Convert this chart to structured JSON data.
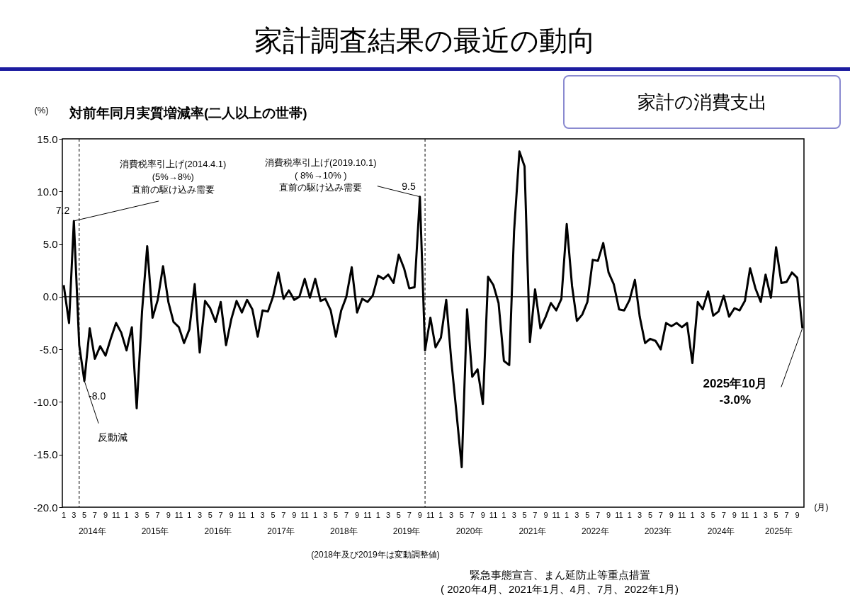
{
  "chart_data": {
    "type": "line",
    "title": "家計調査結果の最近の動向",
    "subtitle": "家計の消費支出",
    "ylabel": "(%)",
    "xlabel": "(月)",
    "color": "#000000",
    "x": [
      "2014-01",
      "2014-02",
      "2014-03",
      "2014-04",
      "2014-05",
      "2014-06",
      "2014-07",
      "2014-08",
      "2014-09",
      "2014-10",
      "2014-11",
      "2014-12",
      "2015-01",
      "2015-02",
      "2015-03",
      "2015-04",
      "2015-05",
      "2015-06",
      "2015-07",
      "2015-08",
      "2015-09",
      "2015-10",
      "2015-11",
      "2015-12",
      "2016-01",
      "2016-02",
      "2016-03",
      "2016-04",
      "2016-05",
      "2016-06",
      "2016-07",
      "2016-08",
      "2016-09",
      "2016-10",
      "2016-11",
      "2016-12",
      "2017-01",
      "2017-02",
      "2017-03",
      "2017-04",
      "2017-05",
      "2017-06",
      "2017-07",
      "2017-08",
      "2017-09",
      "2017-10",
      "2017-11",
      "2017-12",
      "2018-01",
      "2018-02",
      "2018-03",
      "2018-04",
      "2018-05",
      "2018-06",
      "2018-07",
      "2018-08",
      "2018-09",
      "2018-10",
      "2018-11",
      "2018-12",
      "2019-01",
      "2019-02",
      "2019-03",
      "2019-04",
      "2019-05",
      "2019-06",
      "2019-07",
      "2019-08",
      "2019-09",
      "2019-10",
      "2019-11",
      "2019-12",
      "2020-01",
      "2020-02",
      "2020-03",
      "2020-04",
      "2020-05",
      "2020-06",
      "2020-07",
      "2020-08",
      "2020-09",
      "2020-10",
      "2020-11",
      "2020-12",
      "2021-01",
      "2021-02",
      "2021-03",
      "2021-04",
      "2021-05",
      "2021-06",
      "2021-07",
      "2021-08",
      "2021-09",
      "2021-10",
      "2021-11",
      "2021-12",
      "2022-01",
      "2022-02",
      "2022-03",
      "2022-04",
      "2022-05",
      "2022-06",
      "2022-07",
      "2022-08",
      "2022-09",
      "2022-10",
      "2022-11",
      "2022-12",
      "2023-01",
      "2023-02",
      "2023-03",
      "2023-04",
      "2023-05",
      "2023-06",
      "2023-07",
      "2023-08",
      "2023-09",
      "2023-10",
      "2023-11",
      "2023-12",
      "2024-01",
      "2024-02",
      "2024-03",
      "2024-04",
      "2024-05",
      "2024-06",
      "2024-07",
      "2024-08",
      "2024-09",
      "2024-10",
      "2024-11",
      "2024-12",
      "2025-01",
      "2025-02",
      "2025-03",
      "2025-04",
      "2025-05",
      "2025-06",
      "2025-07",
      "2025-08",
      "2025-09",
      "2025-10"
    ],
    "values": [
      1.1,
      -2.5,
      7.2,
      -4.6,
      -8.0,
      -3.0,
      -5.9,
      -4.7,
      -5.6,
      -4.0,
      -2.5,
      -3.4,
      -5.1,
      -2.9,
      -10.6,
      -1.4,
      4.8,
      -2.0,
      -0.3,
      2.9,
      -0.5,
      -2.4,
      -2.9,
      -4.4,
      -3.1,
      1.2,
      -5.3,
      -0.4,
      -1.1,
      -2.4,
      -0.5,
      -4.6,
      -2.1,
      -0.4,
      -1.5,
      -0.3,
      -1.2,
      -3.8,
      -1.3,
      -1.4,
      0.0,
      2.3,
      -0.2,
      0.6,
      -0.3,
      0.0,
      1.7,
      -0.1,
      1.7,
      -0.4,
      -0.2,
      -1.3,
      -3.8,
      -1.3,
      0.0,
      2.8,
      -1.5,
      -0.2,
      -0.5,
      0.1,
      2.0,
      1.7,
      2.1,
      1.3,
      4.0,
      2.7,
      0.8,
      0.9,
      9.5,
      -5.1,
      -2.0,
      -4.8,
      -3.9,
      -0.3,
      -6.0,
      -11.1,
      -16.2,
      -1.2,
      -7.6,
      -6.9,
      -10.2,
      1.9,
      1.1,
      -0.6,
      -6.1,
      -6.5,
      6.2,
      13.8,
      12.4,
      -4.3,
      0.7,
      -3.0,
      -1.9,
      -0.6,
      -1.3,
      -0.2,
      6.9,
      1.0,
      -2.3,
      -1.7,
      -0.5,
      3.5,
      3.4,
      5.1,
      2.3,
      1.2,
      -1.2,
      -1.3,
      -0.3,
      1.6,
      -1.9,
      -4.4,
      -4.0,
      -4.2,
      -5.0,
      -2.5,
      -2.8,
      -2.5,
      -2.9,
      -2.5,
      -6.3,
      -0.5,
      -1.2,
      0.5,
      -1.8,
      -1.4,
      0.1,
      -1.9,
      -1.1,
      -1.3,
      -0.4,
      2.7,
      0.8,
      -0.5,
      2.1,
      -0.1,
      4.7,
      1.3,
      1.4,
      2.3,
      1.8,
      -3.0
    ],
    "value_labels": [
      null,
      null,
      "7.2",
      null,
      "-8.0",
      null,
      null,
      null,
      null,
      null,
      null,
      null,
      null,
      null,
      null,
      null,
      null,
      null,
      null,
      null,
      null,
      null,
      null,
      null,
      null,
      null,
      null,
      null,
      null,
      null,
      null,
      null,
      null,
      null,
      null,
      null,
      null,
      null,
      null,
      null,
      null,
      null,
      null,
      null,
      null,
      null,
      null,
      null,
      null,
      null,
      null,
      null,
      null,
      null,
      null,
      null,
      null,
      null,
      null,
      null,
      null,
      null,
      null,
      null,
      null,
      null,
      null,
      null,
      "9.5",
      null,
      null,
      null,
      null,
      null,
      null,
      null,
      null,
      null,
      null,
      null,
      null,
      null,
      null,
      null,
      null,
      null,
      null,
      null,
      null,
      null,
      null,
      null,
      null,
      null,
      null,
      null,
      null,
      null,
      null,
      null,
      null,
      null,
      null,
      null,
      null,
      null,
      null,
      null,
      null,
      null,
      null,
      null,
      null,
      null,
      null,
      null,
      null,
      null,
      null,
      null,
      null,
      null,
      null,
      null,
      null,
      null,
      null,
      null,
      null,
      null,
      null,
      null,
      null,
      null,
      null,
      null,
      null,
      null,
      null,
      null,
      null,
      null
    ],
    "xlim": [
      "2013-12-24",
      "2025-10-10"
    ],
    "xticks": [
      {
        "value": "2014-01",
        "label": "1"
      },
      {
        "value": "2014-03",
        "label": "3"
      },
      {
        "value": "2014-05",
        "label": "5"
      },
      {
        "value": "2014-07",
        "label": "7"
      },
      {
        "value": "2014-09",
        "label": "9"
      },
      {
        "value": "2014-11",
        "label": "11"
      },
      {
        "value": "2015-01",
        "label": "1"
      },
      {
        "value": "2015-03",
        "label": "3"
      },
      {
        "value": "2015-05",
        "label": "5"
      },
      {
        "value": "2015-07",
        "label": "7"
      },
      {
        "value": "2015-09",
        "label": "9"
      },
      {
        "value": "2015-11",
        "label": "11"
      },
      {
        "value": "2016-01",
        "label": "1"
      },
      {
        "value": "2016-03",
        "label": "3"
      },
      {
        "value": "2016-05",
        "label": "5"
      },
      {
        "value": "2016-07",
        "label": "7"
      },
      {
        "value": "2016-09",
        "label": "9"
      },
      {
        "value": "2016-11",
        "label": "11"
      },
      {
        "value": "2017-01",
        "label": "1"
      },
      {
        "value": "2017-03",
        "label": "3"
      },
      {
        "value": "2017-05",
        "label": "5"
      },
      {
        "value": "2017-07",
        "label": "7"
      },
      {
        "value": "2017-09",
        "label": "9"
      },
      {
        "value": "2017-11",
        "label": "11"
      },
      {
        "value": "2018-01",
        "label": "1"
      },
      {
        "value": "2018-03",
        "label": "3"
      },
      {
        "value": "2018-05",
        "label": "5"
      },
      {
        "value": "2018-07",
        "label": "7"
      },
      {
        "value": "2018-09",
        "label": "9"
      },
      {
        "value": "2018-11",
        "label": "11"
      },
      {
        "value": "2019-01",
        "label": "1"
      },
      {
        "value": "2019-03",
        "label": "3"
      },
      {
        "value": "2019-05",
        "label": "5"
      },
      {
        "value": "2019-07",
        "label": "7"
      },
      {
        "value": "2019-09",
        "label": "9"
      },
      {
        "value": "2019-11",
        "label": "11"
      },
      {
        "value": "2020-01",
        "label": "1"
      },
      {
        "value": "2020-03",
        "label": "3"
      },
      {
        "value": "2020-05",
        "label": "5"
      },
      {
        "value": "2020-07",
        "label": "7"
      },
      {
        "value": "2020-09",
        "label": "9"
      },
      {
        "value": "2020-11",
        "label": "11"
      },
      {
        "value": "2021-01",
        "label": "1"
      },
      {
        "value": "2021-03",
        "label": "3"
      },
      {
        "value": "2021-05",
        "label": "5"
      },
      {
        "value": "2021-07",
        "label": "7"
      },
      {
        "value": "2021-09",
        "label": "9"
      },
      {
        "value": "2021-11",
        "label": "11"
      },
      {
        "value": "2022-01",
        "label": "1"
      },
      {
        "value": "2022-03",
        "label": "3"
      },
      {
        "value": "2022-05",
        "label": "5"
      },
      {
        "value": "2022-07",
        "label": "7"
      },
      {
        "value": "2022-09",
        "label": "9"
      },
      {
        "value": "2022-11",
        "label": "11"
      },
      {
        "value": "2023-01",
        "label": "1"
      },
      {
        "value": "2023-03",
        "label": "3"
      },
      {
        "value": "2023-05",
        "label": "5"
      },
      {
        "value": "2023-07",
        "label": "7"
      },
      {
        "value": "2023-09",
        "label": "9"
      },
      {
        "value": "2023-11",
        "label": "11"
      },
      {
        "value": "2024-01",
        "label": "1"
      },
      {
        "value": "2024-03",
        "label": "3"
      },
      {
        "value": "2024-05",
        "label": "5"
      },
      {
        "value": "2024-07",
        "label": "7"
      },
      {
        "value": "2024-09",
        "label": "9"
      },
      {
        "value": "2024-11",
        "label": "11"
      },
      {
        "value": "2025-01",
        "label": "1"
      },
      {
        "value": "2025-03",
        "label": "3"
      },
      {
        "value": "2025-05",
        "label": "5"
      },
      {
        "value": "2025-07",
        "label": "7"
      },
      {
        "value": "2025-09",
        "label": "9"
      }
    ],
    "x2lim": [
      "2013-12-24",
      "2025-10-10"
    ],
    "x2ticks": [
      {
        "value": "2014-06-16",
        "label": "2014年"
      },
      {
        "value": "2015-06-16",
        "label": "2015年"
      },
      {
        "value": "2016-06-16",
        "label": "2016年"
      },
      {
        "value": "2017-06-16",
        "label": "2017年"
      },
      {
        "value": "2018-06-16",
        "label": "2018年"
      },
      {
        "value": "2019-06-16",
        "label": "2019年"
      },
      {
        "value": "2020-06-16",
        "label": "2020年"
      },
      {
        "value": "2021-06-16",
        "label": "2021年"
      },
      {
        "value": "2022-06-16",
        "label": "2022年"
      },
      {
        "value": "2023-06-16",
        "label": "2023年"
      },
      {
        "value": "2024-06-16",
        "label": "2024年"
      },
      {
        "value": "2025-05-16",
        "label": "2025年"
      }
    ],
    "ylim": [
      -20,
      15
    ],
    "yticks": [
      {
        "value": -20,
        "label": "-20.0"
      },
      {
        "value": -15,
        "label": "-15.0"
      },
      {
        "value": -10,
        "label": "-10.0"
      },
      {
        "value": -5,
        "label": "-5.0"
      },
      {
        "value": 0,
        "label": "0.0"
      },
      {
        "value": 5,
        "label": "5.0"
      },
      {
        "value": 10,
        "label": "10.0"
      },
      {
        "value": 15,
        "label": "15.0"
      }
    ],
    "ref_lines": [
      {
        "axis": "y",
        "value": 0,
        "color": "#000000",
        "line_style": "solid"
      },
      {
        "axis": "x",
        "value": "2014-04",
        "color": "#000000",
        "line_style": "dashed"
      },
      {
        "axis": "x",
        "value": "2019-10",
        "color": "#000000",
        "line_style": "dashed"
      }
    ],
    "annotations": [
      "対前年同月実質増減率(二人以上の世帯)",
      {
        "text": "消費税率引上げ(2014.4.1)\n(5%→8%)\n直前の駆け込み需要",
        "x": "2014-03",
        "y": 7.2
      },
      {
        "text": "反動減",
        "x": "2014-05",
        "y": -8.0
      },
      {
        "text": "消費税率引上げ(2019.10.1)\n( 8%→10% )\n直前の駆け込み需要",
        "x": "2019-09",
        "y": 9.5
      },
      {
        "text": "2025年10月\n-3.0%",
        "x": "2025-10",
        "y": -3.0
      },
      "(2018年及び2019年は変動調整値)",
      "緊急事態宣言、まん延防止等重点措置\n( 2020年4月、2021年1月、4月、7月、2022年1月)"
    ]
  }
}
